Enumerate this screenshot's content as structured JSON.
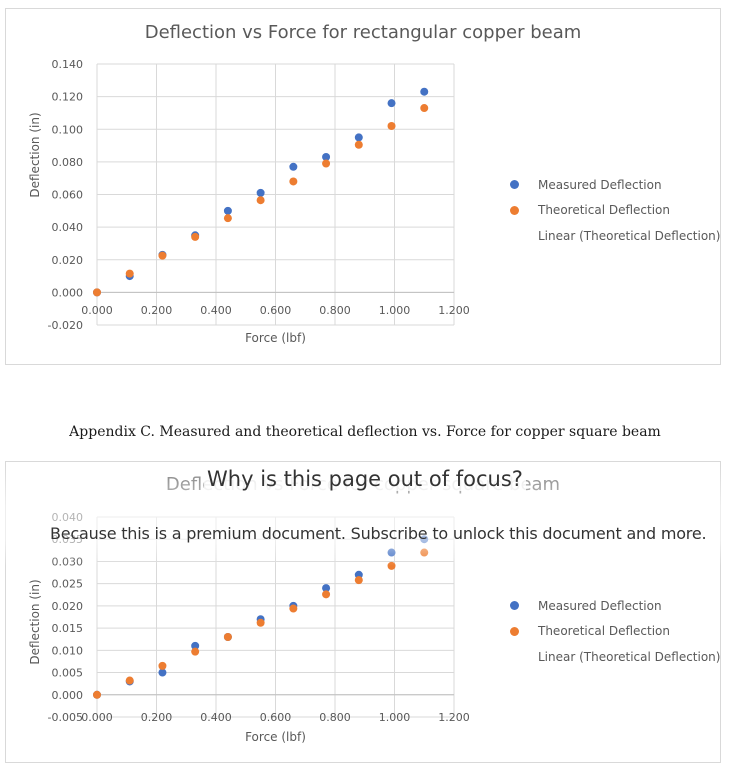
{
  "caption": "Appendix C.  Measured and theoretical deflection vs. Force for copper square beam",
  "paywall": {
    "title": "Why is this page out of focus?",
    "message": "Because this is a premium document. Subscribe to unlock this document and more."
  },
  "colors": {
    "measured": "#4472c4",
    "theoretical": "#ed7d31",
    "gridline": "#d9d9d9",
    "text": "#595959"
  },
  "chart_data": [
    {
      "type": "scatter",
      "title": "Deflection vs Force for rectangular copper beam",
      "xlabel": "Force (lbf)",
      "ylabel": "Deflection (in)",
      "xlim": [
        0,
        1.2
      ],
      "ylim": [
        -0.02,
        0.14
      ],
      "x_ticks": [
        "0.000",
        "0.200",
        "0.400",
        "0.600",
        "0.800",
        "1.000",
        "1.200"
      ],
      "y_ticks": [
        "-0.020",
        "0.000",
        "0.020",
        "0.040",
        "0.060",
        "0.080",
        "0.100",
        "0.120",
        "0.140"
      ],
      "grid": true,
      "legend_position": "right",
      "legend": [
        "Measured Deflection",
        "Theoretical Deflection",
        "Linear (Theoretical Deflection)"
      ],
      "series": [
        {
          "name": "Measured Deflection",
          "x": [
            0,
            0.11,
            0.22,
            0.33,
            0.44,
            0.55,
            0.66,
            0.77,
            0.88,
            0.99,
            1.1
          ],
          "y": [
            0,
            0.01,
            0.023,
            0.035,
            0.05,
            0.061,
            0.077,
            0.083,
            0.095,
            0.116,
            0.123
          ]
        },
        {
          "name": "Theoretical Deflection",
          "x": [
            0,
            0.11,
            0.22,
            0.33,
            0.44,
            0.55,
            0.66,
            0.77,
            0.88,
            0.99,
            1.1
          ],
          "y": [
            0,
            0.0115,
            0.0225,
            0.034,
            0.0455,
            0.0565,
            0.068,
            0.079,
            0.0905,
            0.102,
            0.113
          ]
        }
      ]
    },
    {
      "type": "scatter",
      "title": "Deflection vs Force for copper square beam",
      "xlabel": "Force (lbf)",
      "ylabel": "Deflection (in)",
      "xlim": [
        0,
        1.2
      ],
      "ylim": [
        -0.005,
        0.04
      ],
      "x_ticks": [
        "0.000",
        "0.200",
        "0.400",
        "0.600",
        "0.800",
        "1.000",
        "1.200"
      ],
      "y_ticks": [
        "-0.005",
        "0.000",
        "0.005",
        "0.010",
        "0.015",
        "0.020",
        "0.025",
        "0.030",
        "0.035",
        "0.040"
      ],
      "grid": true,
      "legend_position": "right",
      "legend": [
        "Measured Deflection",
        "Theoretical Deflection",
        "Linear (Theoretical Deflection)"
      ],
      "series": [
        {
          "name": "Measured Deflection",
          "x": [
            0,
            0.11,
            0.22,
            0.33,
            0.44,
            0.55,
            0.66,
            0.77,
            0.88,
            0.99,
            1.1
          ],
          "y": [
            0,
            0.003,
            0.005,
            0.011,
            0.013,
            0.017,
            0.02,
            0.024,
            0.027,
            0.032,
            0.035
          ]
        },
        {
          "name": "Theoretical Deflection",
          "x": [
            0,
            0.11,
            0.22,
            0.33,
            0.44,
            0.55,
            0.66,
            0.77,
            0.88,
            0.99,
            1.1
          ],
          "y": [
            0,
            0.0032,
            0.0065,
            0.0097,
            0.013,
            0.0162,
            0.0194,
            0.0226,
            0.0258,
            0.029,
            0.032
          ]
        }
      ]
    }
  ]
}
